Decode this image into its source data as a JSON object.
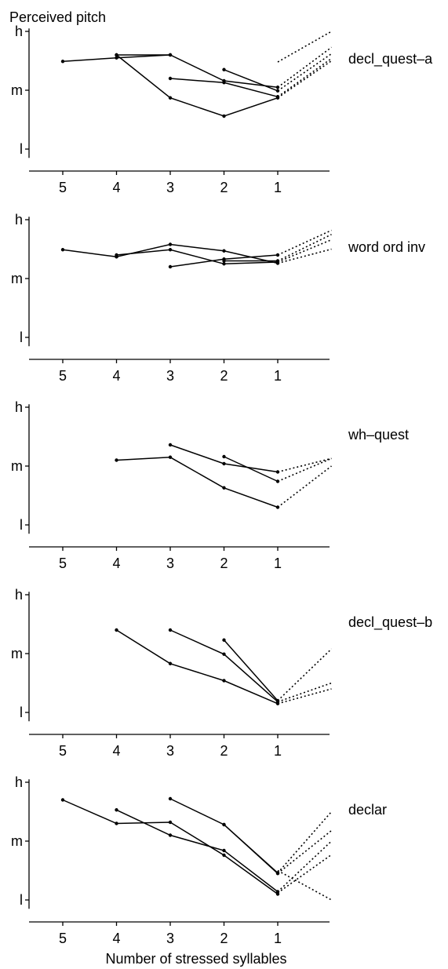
{
  "chart_data": {
    "type": "line",
    "title": "Perceived pitch",
    "xlabel": "Number of stressed syllables",
    "x_categories": [
      "5",
      "4",
      "3",
      "2",
      "1"
    ],
    "y_ticks": [
      {
        "label": "h",
        "value": 3
      },
      {
        "label": "m",
        "value": 2
      },
      {
        "label": "l",
        "value": 1
      }
    ],
    "ylim": [
      0.85,
      3.05
    ],
    "grid": false,
    "panels": [
      {
        "label": "decl_quest–a",
        "series": [
          {
            "points": [
              [
                5,
                2.49
              ],
              [
                4,
                2.55
              ],
              [
                3,
                2.6
              ]
            ]
          },
          {
            "points": [
              [
                4,
                2.6
              ],
              [
                3,
                2.6
              ],
              [
                2,
                2.16
              ],
              [
                1,
                2.05
              ]
            ]
          },
          {
            "points": [
              [
                4,
                2.6
              ],
              [
                3,
                1.87
              ],
              [
                2,
                1.56
              ],
              [
                1,
                1.87
              ]
            ]
          },
          {
            "points": [
              [
                3,
                2.2
              ],
              [
                2,
                2.13
              ],
              [
                1,
                1.89
              ]
            ]
          },
          {
            "points": [
              [
                2,
                2.35
              ],
              [
                1,
                1.99
              ]
            ]
          }
        ],
        "projections": [
          {
            "points": [
              [
                1,
                2.48
              ],
              [
                0,
                3.0
              ]
            ]
          },
          {
            "points": [
              [
                1,
                2.05
              ],
              [
                0,
                2.73
              ]
            ]
          },
          {
            "points": [
              [
                1,
                1.99
              ],
              [
                0,
                2.62
              ]
            ]
          },
          {
            "points": [
              [
                1,
                1.89
              ],
              [
                0,
                2.54
              ]
            ]
          },
          {
            "points": [
              [
                1,
                1.87
              ],
              [
                0,
                2.5
              ]
            ]
          }
        ]
      },
      {
        "label": "word ord inv",
        "series": [
          {
            "points": [
              [
                5,
                2.49
              ],
              [
                4,
                2.37
              ]
            ]
          },
          {
            "points": [
              [
                4,
                2.37
              ],
              [
                3,
                2.58
              ],
              [
                2,
                2.47
              ],
              [
                1,
                2.26
              ]
            ]
          },
          {
            "points": [
              [
                4,
                2.4
              ],
              [
                3,
                2.49
              ],
              [
                2,
                2.25
              ],
              [
                1,
                2.28
              ]
            ]
          },
          {
            "points": [
              [
                3,
                2.2
              ],
              [
                2,
                2.33
              ],
              [
                1,
                2.4
              ]
            ]
          },
          {
            "points": [
              [
                2,
                2.3
              ],
              [
                1,
                2.3
              ]
            ]
          }
        ],
        "projections": [
          {
            "points": [
              [
                1,
                2.4
              ],
              [
                0,
                2.82
              ]
            ]
          },
          {
            "points": [
              [
                1,
                2.3
              ],
              [
                0,
                2.75
              ]
            ]
          },
          {
            "points": [
              [
                1,
                2.28
              ],
              [
                0,
                2.66
              ]
            ]
          },
          {
            "points": [
              [
                1,
                2.26
              ],
              [
                0,
                2.5
              ]
            ]
          }
        ]
      },
      {
        "label": "wh–quest",
        "series": [
          {
            "points": [
              [
                4,
                2.1
              ],
              [
                3,
                2.15
              ],
              [
                2,
                1.63
              ],
              [
                1,
                1.3
              ]
            ]
          },
          {
            "points": [
              [
                3,
                2.36
              ],
              [
                2,
                2.04
              ],
              [
                1,
                1.9
              ]
            ]
          },
          {
            "points": [
              [
                2,
                2.16
              ],
              [
                1,
                1.74
              ]
            ]
          }
        ],
        "projections": [
          {
            "points": [
              [
                1,
                1.9
              ],
              [
                0,
                2.13
              ]
            ]
          },
          {
            "points": [
              [
                1,
                1.74
              ],
              [
                0,
                2.13
              ]
            ]
          },
          {
            "points": [
              [
                1,
                1.3
              ],
              [
                0,
                2.0
              ]
            ]
          }
        ]
      },
      {
        "label": "decl_quest–b",
        "series": [
          {
            "points": [
              [
                4,
                2.4
              ],
              [
                3,
                1.83
              ],
              [
                2,
                1.54
              ],
              [
                1,
                1.15
              ]
            ]
          },
          {
            "points": [
              [
                3,
                2.4
              ],
              [
                2,
                1.99
              ],
              [
                1,
                1.18
              ]
            ]
          },
          {
            "points": [
              [
                2,
                2.23
              ],
              [
                1,
                1.2
              ]
            ]
          }
        ],
        "projections": [
          {
            "points": [
              [
                1,
                1.2
              ],
              [
                0,
                2.08
              ]
            ]
          },
          {
            "points": [
              [
                1,
                1.18
              ],
              [
                0,
                1.5
              ]
            ]
          },
          {
            "points": [
              [
                1,
                1.15
              ],
              [
                0,
                1.4
              ]
            ]
          }
        ]
      },
      {
        "label": "declar",
        "series": [
          {
            "points": [
              [
                5,
                2.7
              ],
              [
                4,
                2.3
              ],
              [
                3,
                2.32
              ],
              [
                2,
                1.76
              ],
              [
                1,
                1.1
              ]
            ]
          },
          {
            "points": [
              [
                4,
                2.53
              ],
              [
                3,
                2.1
              ],
              [
                2,
                1.84
              ],
              [
                1,
                1.14
              ]
            ]
          },
          {
            "points": [
              [
                3,
                2.72
              ],
              [
                2,
                2.28
              ],
              [
                1,
                1.45
              ]
            ]
          },
          {
            "points": [
              [
                2,
                2.28
              ],
              [
                1,
                1.46
              ]
            ]
          }
        ],
        "projections": [
          {
            "points": [
              [
                1,
                1.46
              ],
              [
                0,
                2.5
              ]
            ]
          },
          {
            "points": [
              [
                1,
                1.45
              ],
              [
                0,
                2.18
              ]
            ]
          },
          {
            "points": [
              [
                1,
                1.14
              ],
              [
                0,
                2.0
              ]
            ]
          },
          {
            "points": [
              [
                1,
                1.12
              ],
              [
                0,
                1.77
              ]
            ]
          },
          {
            "points": [
              [
                1,
                1.5
              ],
              [
                0,
                1.0
              ]
            ]
          }
        ]
      }
    ]
  }
}
